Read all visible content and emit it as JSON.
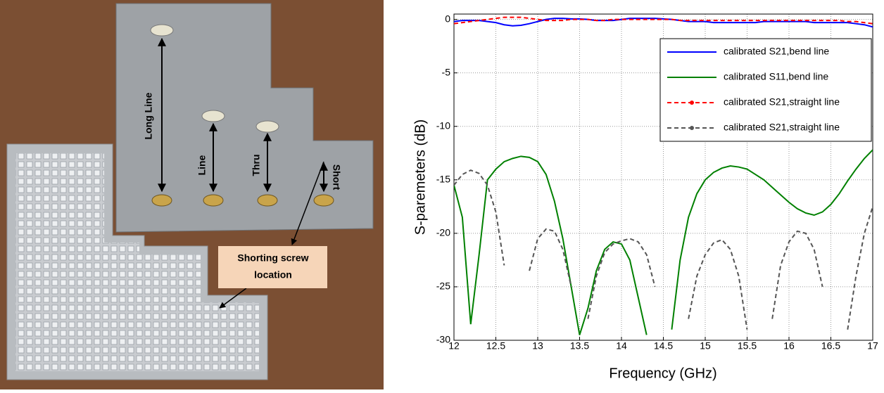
{
  "photo": {
    "labels": {
      "long_line": "Long Line",
      "line": "Line",
      "thru": "Thru",
      "short": "Short",
      "shorting_screw": [
        "Shorting screw",
        "location"
      ]
    }
  },
  "chart_data": {
    "type": "line",
    "x_label": "Frequency (GHz)",
    "y_label": "S-paremeters (dB)",
    "x": [
      12.0,
      12.1,
      12.2,
      12.3,
      12.4,
      12.5,
      12.6,
      12.7,
      12.8,
      12.9,
      13.0,
      13.1,
      13.2,
      13.3,
      13.4,
      13.5,
      13.6,
      13.7,
      13.8,
      13.9,
      14.0,
      14.1,
      14.2,
      14.3,
      14.4,
      14.5,
      14.6,
      14.7,
      14.8,
      14.9,
      15.0,
      15.1,
      15.2,
      15.3,
      15.4,
      15.5,
      15.6,
      15.7,
      15.8,
      15.9,
      16.0,
      16.1,
      16.2,
      16.3,
      16.4,
      16.5,
      16.6,
      16.7,
      16.8,
      16.9,
      17.0
    ],
    "xlim": [
      12,
      17
    ],
    "xticks": [
      12,
      12.5,
      13,
      13.5,
      14,
      14.5,
      15,
      15.5,
      16,
      16.5,
      17
    ],
    "ylim": [
      -30,
      0.5
    ],
    "yticks": [
      0,
      -5,
      -10,
      -15,
      -20,
      -25,
      -30
    ],
    "grid": true,
    "legend": "upper right",
    "series": [
      {
        "name": "calibrated S21,bend line",
        "color": "#0000ff",
        "dash": false,
        "marker": false,
        "values": [
          -0.2,
          -0.1,
          -0.1,
          -0.1,
          -0.2,
          -0.3,
          -0.5,
          -0.6,
          -0.55,
          -0.4,
          -0.2,
          0,
          0.1,
          0.1,
          0.05,
          0.05,
          0,
          -0.1,
          -0.1,
          -0.1,
          0,
          0.1,
          0.1,
          0.1,
          0.1,
          0.05,
          0,
          -0.1,
          -0.2,
          -0.2,
          -0.2,
          -0.3,
          -0.3,
          -0.3,
          -0.3,
          -0.3,
          -0.3,
          -0.2,
          -0.2,
          -0.2,
          -0.2,
          -0.2,
          -0.2,
          -0.3,
          -0.3,
          -0.3,
          -0.3,
          -0.3,
          -0.4,
          -0.5,
          -0.7
        ]
      },
      {
        "name": "calibrated S11,bend line",
        "color": "#008000",
        "dash": false,
        "marker": false,
        "values": [
          -15.5,
          -18.5,
          -28.5,
          -22,
          -15,
          -14,
          -13.3,
          -13,
          -12.8,
          -12.9,
          -13.3,
          -14.5,
          -17,
          -20.5,
          -25,
          -29.5,
          -27,
          -23.5,
          -21.5,
          -20.8,
          -21,
          -22.5,
          -26,
          -29.5,
          null,
          null,
          -29,
          -22.5,
          -18.5,
          -16.3,
          -15,
          -14.3,
          -13.9,
          -13.7,
          -13.8,
          -14,
          -14.5,
          -15,
          -15.7,
          -16.4,
          -17.1,
          -17.7,
          -18.1,
          -18.3,
          -18,
          -17.3,
          -16.3,
          -15.1,
          -14,
          -13,
          -12.2
        ]
      },
      {
        "name": "calibrated S21,straight line",
        "color": "#ff0000",
        "dash": true,
        "marker": true,
        "values": [
          -0.4,
          -0.3,
          -0.2,
          -0.1,
          0,
          0.1,
          0.2,
          0.2,
          0.2,
          0.1,
          0,
          -0.1,
          -0.1,
          -0.1,
          0,
          0,
          0,
          -0.1,
          -0.1,
          0,
          0,
          0,
          0,
          0,
          0,
          0,
          0,
          -0.1,
          -0.1,
          -0.1,
          -0.1,
          -0.1,
          -0.1,
          -0.1,
          -0.1,
          -0.1,
          -0.1,
          -0.1,
          -0.1,
          -0.1,
          -0.1,
          -0.1,
          -0.1,
          -0.1,
          -0.1,
          -0.1,
          -0.1,
          -0.2,
          -0.2,
          -0.3,
          -0.4
        ]
      },
      {
        "name": "calibrated S21,straight line",
        "color": "#555555",
        "dash": true,
        "marker": true,
        "values": [
          -15.5,
          -14.5,
          -14.1,
          -14.4,
          -15.5,
          -18,
          -23,
          null,
          null,
          -23.5,
          -20.5,
          -19.6,
          -19.8,
          -21.5,
          -25,
          null,
          -28,
          -24,
          -21.8,
          -21,
          -20.7,
          -20.5,
          -20.8,
          -22,
          -25,
          null,
          null,
          null,
          -28,
          -24,
          -22,
          -20.9,
          -20.6,
          -21.5,
          -24,
          -29,
          null,
          null,
          -28,
          -23,
          -20.8,
          -19.8,
          -20,
          -21.5,
          -25,
          null,
          null,
          -29,
          -24,
          -20,
          -17.5
        ]
      }
    ]
  }
}
